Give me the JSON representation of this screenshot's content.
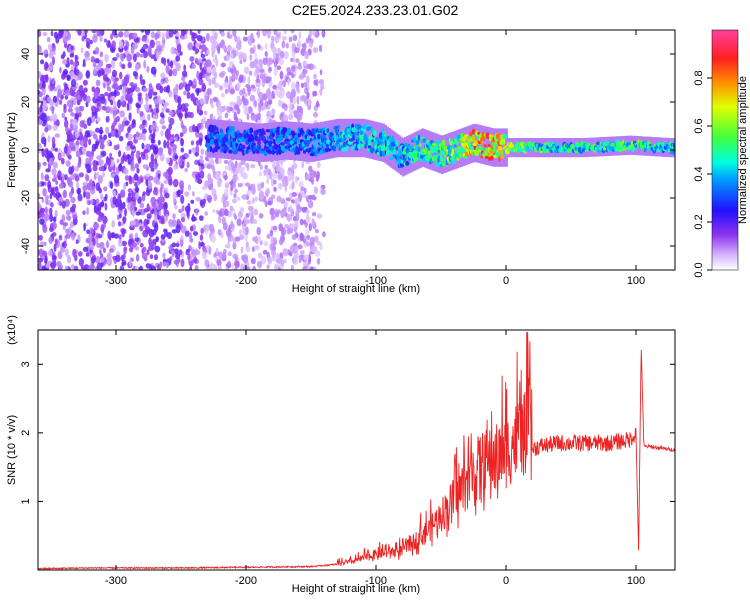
{
  "page_title": "C2E5.2024.233.23.01.G02",
  "colors": {
    "snr_line": "#ee2222",
    "spectrogram_palette": [
      "#ffffff",
      "#e8d8ff",
      "#b890ff",
      "#8a3cf0",
      "#5a00e0",
      "#2a10ff",
      "#0060ff",
      "#00c8ff",
      "#00ffb0",
      "#40ff40",
      "#b0ff00",
      "#ffe000",
      "#ff8000",
      "#ff2020",
      "#ff40a0"
    ]
  },
  "chart_data": [
    {
      "type": "heatmap",
      "title": "C2E5.2024.233.23.01.G02",
      "xlabel": "Height of straight line (km)",
      "ylabel": "Frequency (Hz)",
      "xlim": [
        -360,
        130
      ],
      "ylim": [
        -50,
        50
      ],
      "x_ticks": [
        -300,
        -200,
        -100,
        0,
        100
      ],
      "y_ticks": [
        -40,
        -20,
        0,
        20,
        40
      ],
      "colorbar": {
        "label": "Normalized spectral amplitude",
        "range": [
          0,
          1
        ],
        "ticks": [
          "0.0",
          "0.2",
          "0.4",
          "0.6",
          "0.8"
        ]
      },
      "signal_track": [
        {
          "x": -230,
          "f": 5,
          "amp": 0.35
        },
        {
          "x": -210,
          "f": 4,
          "amp": 0.4
        },
        {
          "x": -190,
          "f": 3,
          "amp": 0.35
        },
        {
          "x": -170,
          "f": 4,
          "amp": 0.4
        },
        {
          "x": -150,
          "f": 3,
          "amp": 0.4
        },
        {
          "x": -130,
          "f": 5,
          "amp": 0.45
        },
        {
          "x": -110,
          "f": 5,
          "amp": 0.5
        },
        {
          "x": -95,
          "f": 3,
          "amp": 0.5
        },
        {
          "x": -80,
          "f": -3,
          "amp": 0.5
        },
        {
          "x": -65,
          "f": 1,
          "amp": 0.55
        },
        {
          "x": -50,
          "f": -2,
          "amp": 0.6
        },
        {
          "x": -35,
          "f": 1,
          "amp": 0.7
        },
        {
          "x": -25,
          "f": 3,
          "amp": 0.85
        },
        {
          "x": -10,
          "f": 1,
          "amp": 0.9
        },
        {
          "x": 5,
          "f": 1,
          "amp": 0.7
        },
        {
          "x": 30,
          "f": 1,
          "amp": 0.55
        },
        {
          "x": 60,
          "f": 1,
          "amp": 0.55
        },
        {
          "x": 95,
          "f": 2,
          "amp": 0.6
        },
        {
          "x": 125,
          "f": 1,
          "amp": 0.5
        }
      ]
    },
    {
      "type": "line",
      "xlabel": "Height of straight line (km)",
      "ylabel": "SNR (10 * v/v)",
      "y_multiplier": "(x10⁴)",
      "xlim": [
        -360,
        130
      ],
      "ylim": [
        0,
        3.5
      ],
      "x_ticks": [
        -300,
        -200,
        -100,
        0,
        100
      ],
      "y_ticks": [
        1,
        2,
        3
      ],
      "series": [
        {
          "x": [
            -360,
            -320,
            -250,
            -150,
            -120,
            -100,
            -80,
            -60,
            -45,
            -35,
            -25,
            -20,
            -10,
            0,
            10,
            25,
            40,
            60,
            80,
            95,
            100,
            102,
            104,
            106,
            110,
            130
          ],
          "y": [
            0.02,
            0.03,
            0.03,
            0.05,
            0.1,
            0.2,
            0.25,
            0.5,
            0.8,
            1.0,
            1.2,
            1.35,
            1.4,
            1.5,
            1.7,
            1.8,
            1.85,
            1.85,
            1.85,
            1.9,
            2.0,
            0.3,
            3.3,
            1.8,
            1.8,
            1.75
          ]
        }
      ]
    }
  ]
}
